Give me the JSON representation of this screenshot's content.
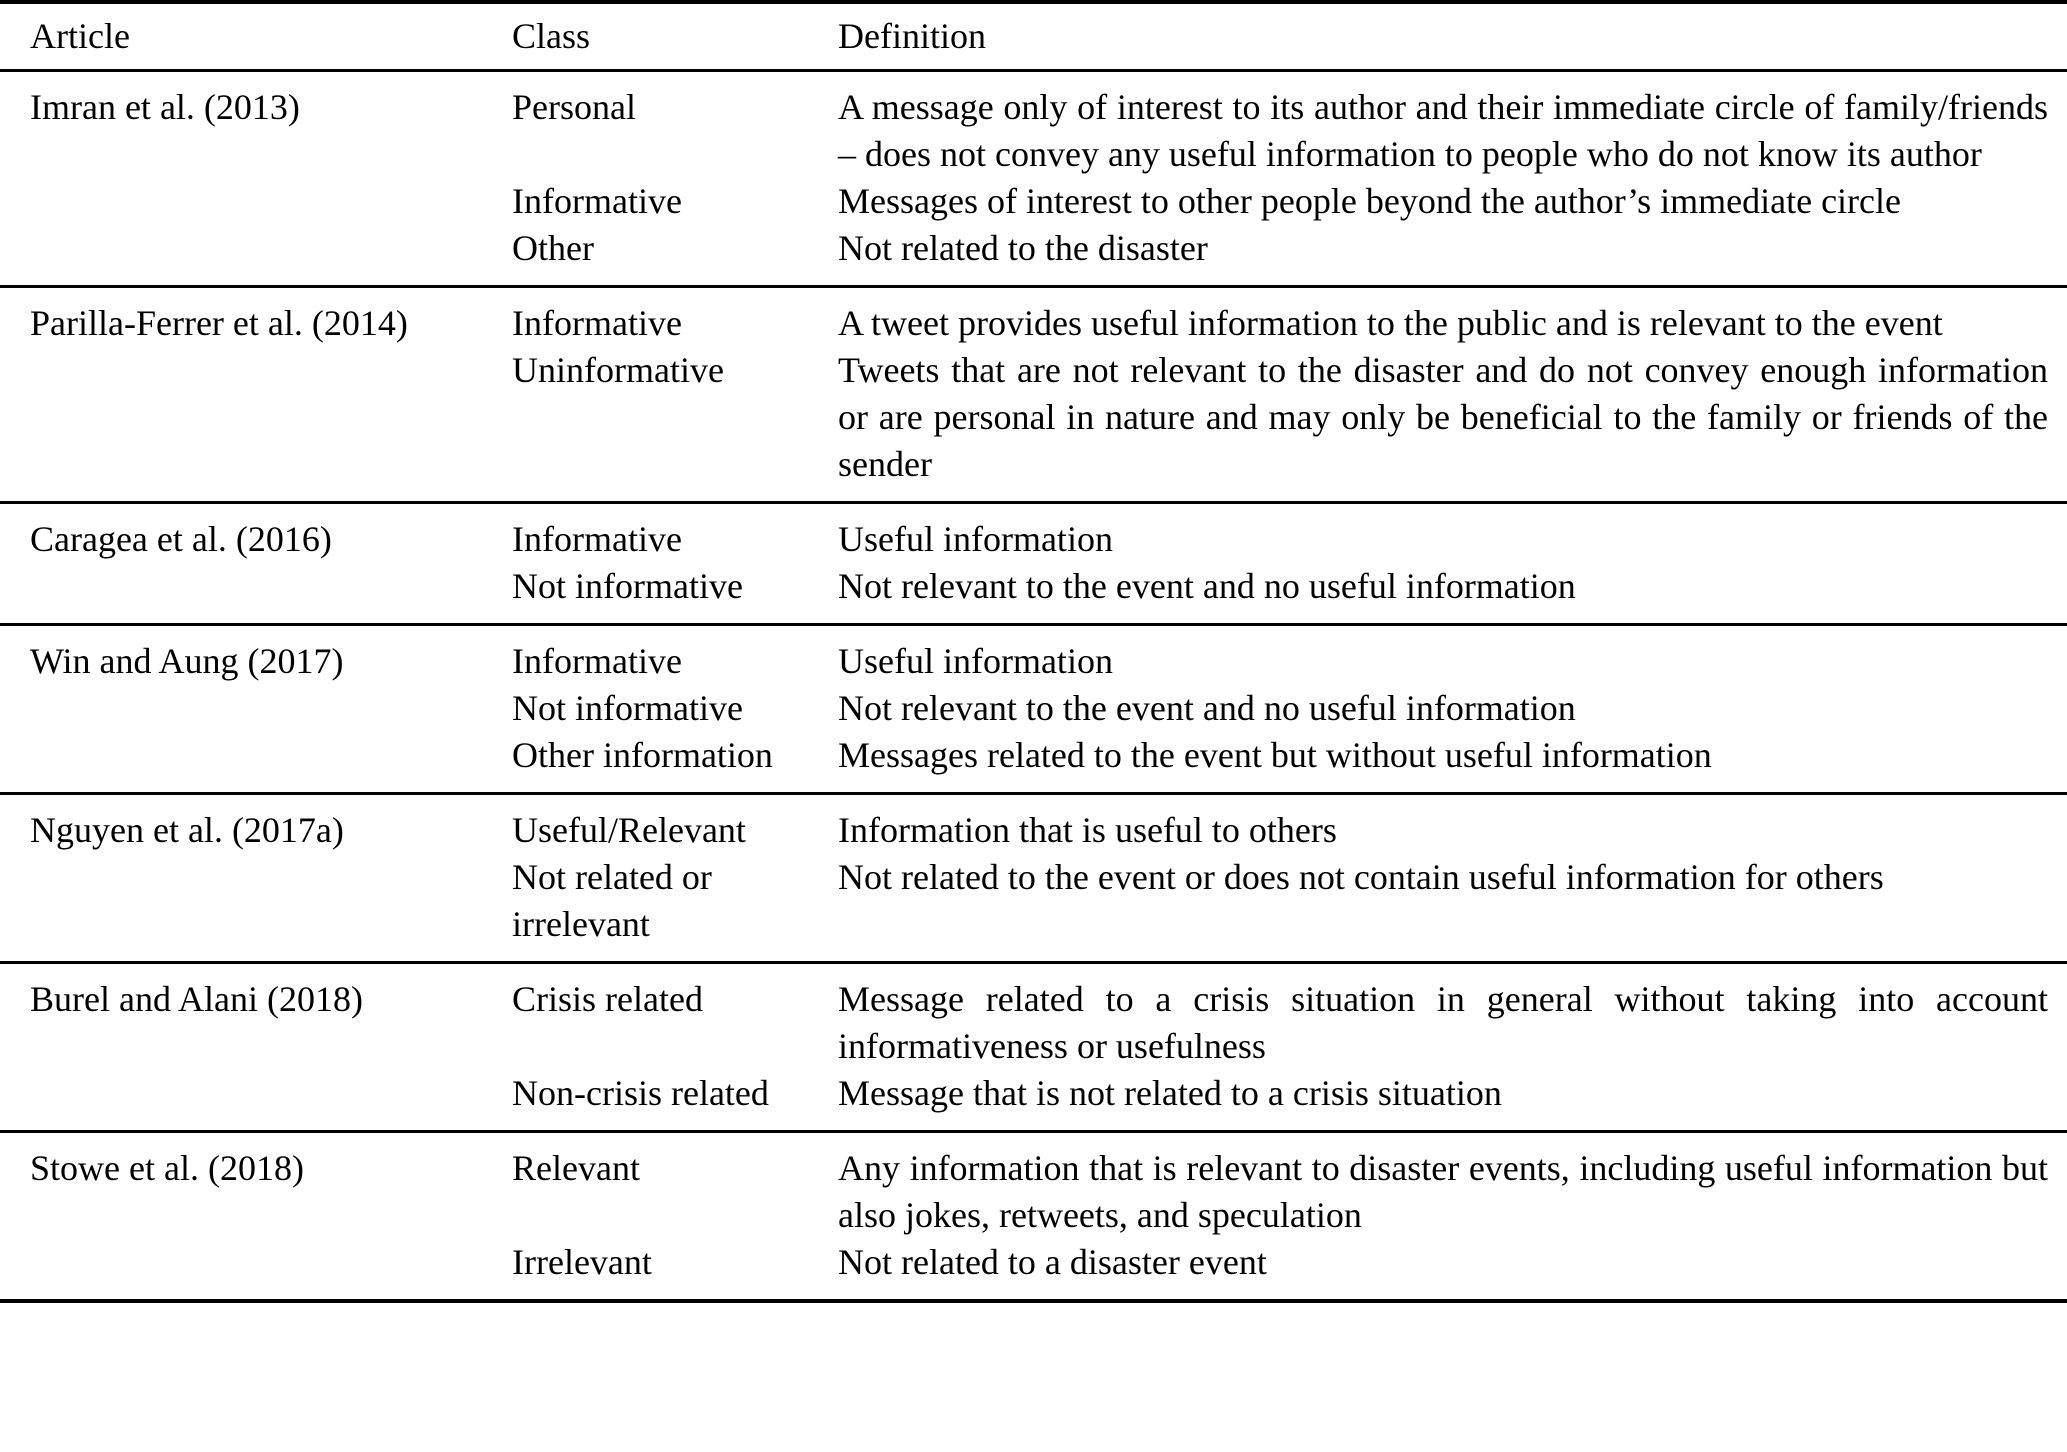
{
  "table": {
    "columns": [
      "Article",
      "Class",
      "Definition"
    ],
    "rows": [
      {
        "article": "Imran et al. (2013)",
        "classes": [
          {
            "label": "Personal",
            "definition": "A message only of interest to its author and their immediate circle of family/friends – does not convey any useful information to people who do not know its author"
          },
          {
            "label": "Informative",
            "definition": "Messages of interest to other people beyond the author’s immediate circle"
          },
          {
            "label": "Other",
            "definition": "Not related to the disaster"
          }
        ]
      },
      {
        "article": "Parilla-Ferrer et al. (2014)",
        "classes": [
          {
            "label": "Informative",
            "definition": "A tweet provides useful information to the public and is relevant to the event"
          },
          {
            "label": "Uninformative",
            "definition": "Tweets that are not relevant to the disaster and do not convey enough information or are personal in nature and may only be beneficial to the family or friends of the sender"
          }
        ]
      },
      {
        "article": "Caragea et al. (2016)",
        "classes": [
          {
            "label": "Informative",
            "definition": "Useful information"
          },
          {
            "label": "Not informative",
            "definition": "Not relevant to the event and no useful information"
          }
        ]
      },
      {
        "article": "Win and Aung (2017)",
        "classes": [
          {
            "label": "Informative",
            "definition": "Useful information"
          },
          {
            "label": "Not informative",
            "definition": "Not relevant to the event and no useful information"
          },
          {
            "label": "Other information",
            "definition": "Messages related to the event but without useful information"
          }
        ]
      },
      {
        "article": "Nguyen et al. (2017a)",
        "classes": [
          {
            "label": "Useful/Relevant",
            "definition": "Information that is useful to others"
          },
          {
            "label": "Not related or irrelevant",
            "definition": "Not related to the event or does not contain useful information for others"
          }
        ]
      },
      {
        "article": "Burel and Alani (2018)",
        "classes": [
          {
            "label": "Crisis related",
            "definition": "Message related to a crisis situation in general without taking into account informativeness or usefulness"
          },
          {
            "label": "Non-crisis related",
            "definition": "Message that is not related to a crisis situation"
          }
        ]
      },
      {
        "article": "Stowe et al. (2018)",
        "classes": [
          {
            "label": "Relevant",
            "definition": "Any information that is relevant to disaster events, including useful information but also jokes, retweets, and speculation"
          },
          {
            "label": "Irrelevant",
            "definition": "Not related to a disaster event"
          }
        ]
      }
    ]
  }
}
